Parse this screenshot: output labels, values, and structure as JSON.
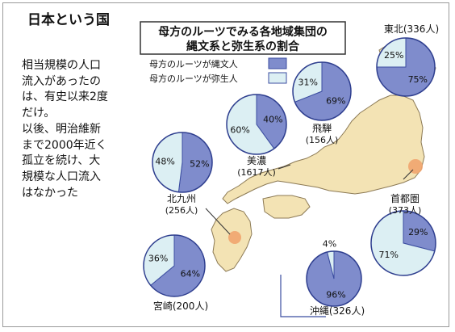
{
  "left_panel": {
    "title": "日本という国",
    "paragraph1_lines": [
      "相当規模の人口",
      "流入があったの",
      "は、有史以来2度",
      "だけ。"
    ],
    "paragraph2_lines": [
      "以後、明治維新",
      "まで2000年近く",
      "孤立を続け、大",
      "規模な人口流入",
      "はなかった"
    ]
  },
  "figure": {
    "title_line1": "母方のルーツでみる各地域集団の",
    "title_line2": "縄文系と弥生系の割合"
  },
  "colors": {
    "jomon": "#7f8ccc",
    "yayoi": "#dceff3",
    "land": "#f3e3b4",
    "land_stroke": "#8c7a55",
    "marker": "#f1a46e",
    "frame": "#9a9a9a"
  },
  "chart_data": {
    "type": "pie",
    "title": "母方のルーツでみる各地域集団の縄文系と弥生系の割合",
    "legend": [
      "母方のルーツが縄文人",
      "母方のルーツが弥生人"
    ],
    "legend_position": "top-left",
    "regions": [
      {
        "region": "東北",
        "count": "336人",
        "jomon": 75,
        "yayoi": 25,
        "jomon_label": "75%",
        "yayoi_label": "25%"
      },
      {
        "region": "飛騨",
        "count": "156人",
        "jomon": 69,
        "yayoi": 31,
        "jomon_label": "69%",
        "yayoi_label": "31%"
      },
      {
        "region": "美濃",
        "count": "1617人",
        "jomon": 40,
        "yayoi": 60,
        "jomon_label": "40%",
        "yayoi_label": "60%"
      },
      {
        "region": "北九州",
        "count": "256人",
        "jomon": 52,
        "yayoi": 48,
        "jomon_label": "52%",
        "yayoi_label": "48%"
      },
      {
        "region": "首都圏",
        "count": "373人",
        "jomon": 29,
        "yayoi": 71,
        "jomon_label": "29%",
        "yayoi_label": "71%"
      },
      {
        "region": "宮崎",
        "count": "200人",
        "jomon": 64,
        "yayoi": 36,
        "jomon_label": "64%",
        "yayoi_label": "36%"
      },
      {
        "region": "沖縄",
        "count": "326人",
        "jomon": 96,
        "yayoi": 4,
        "jomon_label": "96%",
        "yayoi_label": "4%"
      }
    ]
  }
}
